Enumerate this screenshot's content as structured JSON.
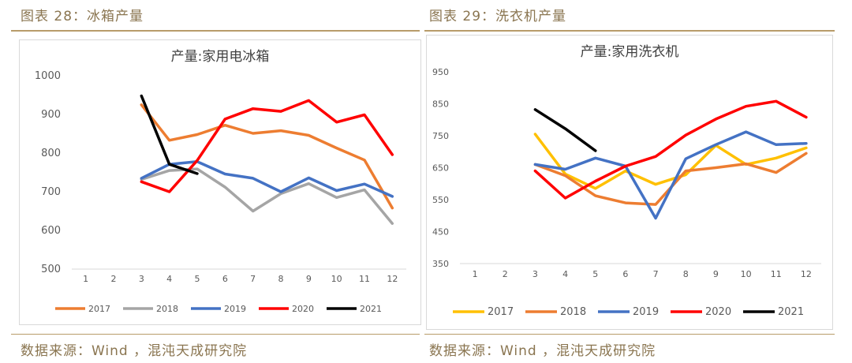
{
  "left_panel": {
    "figure_label": "图表 28：冰箱产量",
    "source": "数据来源：Wind ，混沌天成研究院"
  },
  "right_panel": {
    "figure_label": "图表 29：洗衣机产量",
    "source": "数据来源：Wind ，混沌天成研究院"
  },
  "series_colors": {
    "2017": "#ED7D31",
    "2018": "#A5A5A5",
    "2019": "#4472C4",
    "2020": "#FF0000",
    "2021": "#000000"
  },
  "right_series_colors": {
    "2017": "#FFC000",
    "2018": "#ED7D31",
    "2019": "#4472C4",
    "2020": "#FF0000",
    "2021": "#000000"
  },
  "chart_data": [
    {
      "type": "line",
      "title": "产量:家用电冰箱",
      "xlabel": "",
      "ylabel": "",
      "categories": [
        "1",
        "2",
        "3",
        "4",
        "5",
        "6",
        "7",
        "8",
        "9",
        "10",
        "11",
        "12"
      ],
      "ylim": [
        500,
        1000
      ],
      "yticks": [
        500,
        600,
        700,
        800,
        900,
        1000
      ],
      "grid": false,
      "legend": "bottom",
      "series": [
        {
          "name": "2017",
          "values": [
            null,
            null,
            925,
            833,
            848,
            872,
            851,
            858,
            846,
            813,
            782,
            658
          ]
        },
        {
          "name": "2018",
          "values": [
            null,
            null,
            732,
            755,
            759,
            712,
            650,
            695,
            721,
            685,
            705,
            618
          ]
        },
        {
          "name": "2019",
          "values": [
            null,
            null,
            735,
            771,
            778,
            746,
            735,
            700,
            736,
            703,
            720,
            688
          ]
        },
        {
          "name": "2020",
          "values": [
            null,
            null,
            726,
            700,
            781,
            888,
            915,
            908,
            936,
            880,
            899,
            796
          ]
        },
        {
          "name": "2021",
          "values": [
            null,
            null,
            948,
            771,
            747,
            null,
            null,
            null,
            null,
            null,
            null,
            null
          ]
        }
      ]
    },
    {
      "type": "line",
      "title": "产量:家用洗衣机",
      "xlabel": "",
      "ylabel": "",
      "categories": [
        "1",
        "2",
        "3",
        "4",
        "5",
        "6",
        "7",
        "8",
        "9",
        "10",
        "11",
        "12"
      ],
      "ylim": [
        350,
        950
      ],
      "yticks": [
        350,
        450,
        550,
        650,
        750,
        850,
        950
      ],
      "grid": false,
      "legend": "bottom",
      "series": [
        {
          "name": "2017",
          "values": [
            null,
            null,
            755,
            630,
            585,
            640,
            598,
            628,
            720,
            660,
            680,
            712
          ]
        },
        {
          "name": "2018",
          "values": [
            null,
            null,
            660,
            625,
            562,
            540,
            535,
            640,
            650,
            662,
            635,
            695
          ]
        },
        {
          "name": "2019",
          "values": [
            null,
            null,
            660,
            645,
            680,
            655,
            492,
            678,
            722,
            762,
            722,
            726
          ]
        },
        {
          "name": "2020",
          "values": [
            null,
            null,
            640,
            555,
            608,
            655,
            685,
            752,
            802,
            842,
            858,
            808
          ]
        },
        {
          "name": "2021",
          "values": [
            null,
            null,
            832,
            772,
            703,
            null,
            null,
            null,
            null,
            null,
            null,
            null
          ]
        }
      ]
    }
  ]
}
